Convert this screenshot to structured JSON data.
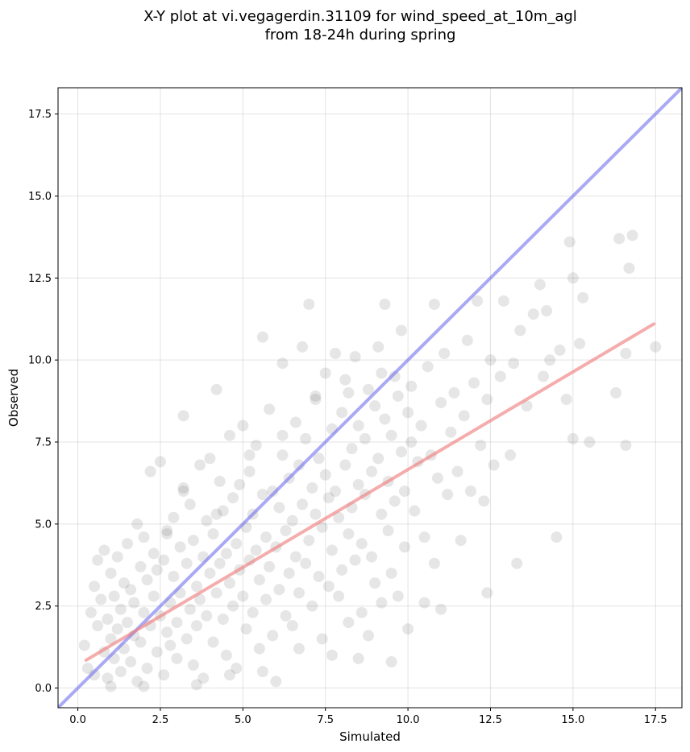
{
  "chart_data": {
    "type": "scatter",
    "title_lines": [
      "X-Y plot at vi.vegagerdin.31109 for wind_speed_at_10m_agl",
      "from 18-24h during spring"
    ],
    "xlabel": "Simulated",
    "ylabel": "Observed",
    "xlim": [
      -0.6,
      18.3
    ],
    "ylim": [
      -0.6,
      18.3
    ],
    "xticks": [
      "0.0",
      "2.5",
      "5.0",
      "7.5",
      "10.0",
      "12.5",
      "15.0",
      "17.5"
    ],
    "yticks": [
      "0.0",
      "2.5",
      "5.0",
      "7.5",
      "10.0",
      "12.5",
      "15.0",
      "17.5"
    ],
    "grid": true,
    "point_color": "#404040",
    "identity_line": {
      "from": [
        -0.6,
        -0.6
      ],
      "to": [
        18.3,
        18.3
      ],
      "color": "#6f6fee"
    },
    "fit_line": {
      "from": [
        0.25,
        0.85
      ],
      "to": [
        17.45,
        11.1
      ],
      "color": "#ef7f7f"
    },
    "points": [
      [
        0.2,
        1.3
      ],
      [
        0.3,
        0.6
      ],
      [
        0.4,
        2.3
      ],
      [
        0.5,
        3.1
      ],
      [
        0.5,
        0.4
      ],
      [
        0.6,
        1.9
      ],
      [
        0.6,
        3.9
      ],
      [
        0.7,
        2.7
      ],
      [
        0.8,
        1.1
      ],
      [
        0.8,
        4.2
      ],
      [
        0.9,
        0.3
      ],
      [
        0.9,
        2.1
      ],
      [
        1.0,
        3.5
      ],
      [
        1.0,
        1.5
      ],
      [
        1.1,
        2.8
      ],
      [
        1.1,
        0.9
      ],
      [
        1.2,
        4.0
      ],
      [
        1.2,
        1.8
      ],
      [
        1.3,
        0.5
      ],
      [
        1.3,
        2.4
      ],
      [
        1.4,
        3.2
      ],
      [
        1.4,
        1.2
      ],
      [
        1.5,
        2.0
      ],
      [
        1.5,
        4.4
      ],
      [
        1.6,
        0.8
      ],
      [
        1.6,
        3.0
      ],
      [
        1.7,
        1.6
      ],
      [
        1.7,
        2.6
      ],
      [
        1.8,
        5.0
      ],
      [
        1.8,
        0.2
      ],
      [
        1.9,
        3.7
      ],
      [
        1.9,
        1.4
      ],
      [
        2.0,
        2.3
      ],
      [
        2.0,
        4.6
      ],
      [
        2.1,
        0.6
      ],
      [
        2.1,
        3.3
      ],
      [
        2.2,
        1.9
      ],
      [
        2.2,
        6.6
      ],
      [
        2.3,
        2.8
      ],
      [
        2.3,
        4.1
      ],
      [
        2.4,
        1.1
      ],
      [
        2.4,
        3.6
      ],
      [
        2.5,
        2.2
      ],
      [
        2.5,
        6.9
      ],
      [
        2.6,
        0.4
      ],
      [
        2.6,
        3.9
      ],
      [
        2.7,
        1.7
      ],
      [
        2.7,
        4.8
      ],
      [
        2.8,
        2.6
      ],
      [
        2.8,
        1.3
      ],
      [
        2.9,
        3.4
      ],
      [
        2.9,
        5.2
      ],
      [
        3.0,
        2.0
      ],
      [
        3.0,
        0.9
      ],
      [
        3.1,
        4.3
      ],
      [
        3.1,
        2.9
      ],
      [
        3.2,
        6.1
      ],
      [
        3.2,
        8.3
      ],
      [
        3.3,
        1.5
      ],
      [
        3.3,
        3.8
      ],
      [
        3.4,
        2.4
      ],
      [
        3.4,
        5.6
      ],
      [
        3.5,
        0.7
      ],
      [
        3.5,
        4.5
      ],
      [
        3.6,
        3.1
      ],
      [
        3.6,
        1.9
      ],
      [
        3.7,
        6.8
      ],
      [
        3.7,
        2.7
      ],
      [
        3.8,
        4.0
      ],
      [
        3.8,
        0.3
      ],
      [
        3.9,
        5.1
      ],
      [
        3.9,
        2.2
      ],
      [
        4.0,
        3.5
      ],
      [
        4.0,
        7.0
      ],
      [
        4.1,
        1.4
      ],
      [
        4.1,
        4.7
      ],
      [
        4.2,
        2.9
      ],
      [
        4.2,
        9.1
      ],
      [
        4.3,
        3.8
      ],
      [
        4.3,
        6.3
      ],
      [
        4.4,
        2.1
      ],
      [
        4.4,
        5.4
      ],
      [
        4.5,
        1.0
      ],
      [
        4.5,
        4.1
      ],
      [
        4.6,
        7.7
      ],
      [
        4.6,
        3.2
      ],
      [
        4.7,
        5.8
      ],
      [
        4.7,
        2.5
      ],
      [
        4.8,
        4.4
      ],
      [
        4.8,
        0.6
      ],
      [
        4.9,
        6.2
      ],
      [
        4.9,
        3.6
      ],
      [
        5.0,
        2.8
      ],
      [
        5.0,
        8.0
      ],
      [
        5.1,
        4.9
      ],
      [
        5.1,
        1.8
      ],
      [
        5.2,
        3.9
      ],
      [
        5.2,
        6.6
      ],
      [
        5.3,
        2.3
      ],
      [
        5.3,
        5.3
      ],
      [
        5.4,
        7.4
      ],
      [
        5.4,
        4.2
      ],
      [
        5.5,
        1.2
      ],
      [
        5.5,
        3.3
      ],
      [
        5.6,
        5.9
      ],
      [
        5.6,
        10.7
      ],
      [
        5.7,
        4.6
      ],
      [
        5.7,
        2.7
      ],
      [
        5.8,
        8.5
      ],
      [
        5.8,
        3.7
      ],
      [
        5.9,
        6.0
      ],
      [
        5.9,
        1.6
      ],
      [
        6.0,
        4.3
      ],
      [
        6.0,
        0.2
      ],
      [
        6.1,
        5.5
      ],
      [
        6.1,
        3.0
      ],
      [
        6.2,
        7.1
      ],
      [
        6.2,
        9.9
      ],
      [
        6.3,
        4.8
      ],
      [
        6.3,
        2.2
      ],
      [
        6.4,
        6.4
      ],
      [
        6.4,
        3.5
      ],
      [
        6.5,
        5.1
      ],
      [
        6.5,
        1.9
      ],
      [
        6.6,
        8.1
      ],
      [
        6.6,
        4.0
      ],
      [
        6.7,
        6.8
      ],
      [
        6.7,
        2.9
      ],
      [
        6.8,
        10.4
      ],
      [
        6.8,
        5.6
      ],
      [
        6.9,
        3.8
      ],
      [
        6.9,
        7.6
      ],
      [
        7.0,
        4.5
      ],
      [
        7.0,
        11.7
      ],
      [
        7.1,
        6.1
      ],
      [
        7.1,
        2.5
      ],
      [
        7.2,
        5.3
      ],
      [
        7.2,
        8.8
      ],
      [
        7.3,
        3.4
      ],
      [
        7.3,
        7.0
      ],
      [
        7.4,
        4.9
      ],
      [
        7.4,
        1.5
      ],
      [
        7.5,
        6.5
      ],
      [
        7.5,
        9.6
      ],
      [
        7.6,
        5.8
      ],
      [
        7.6,
        3.1
      ],
      [
        7.7,
        7.9
      ],
      [
        7.7,
        4.2
      ],
      [
        7.8,
        10.2
      ],
      [
        7.8,
        6.0
      ],
      [
        7.9,
        2.8
      ],
      [
        7.9,
        5.2
      ],
      [
        8.0,
        8.4
      ],
      [
        8.0,
        3.6
      ],
      [
        8.1,
        6.8
      ],
      [
        8.1,
        9.4
      ],
      [
        8.2,
        4.7
      ],
      [
        8.2,
        2.0
      ],
      [
        8.3,
        7.3
      ],
      [
        8.3,
        5.5
      ],
      [
        8.4,
        3.9
      ],
      [
        8.4,
        10.1
      ],
      [
        8.5,
        6.2
      ],
      [
        8.5,
        8.0
      ],
      [
        8.6,
        4.4
      ],
      [
        8.6,
        2.3
      ],
      [
        8.7,
        7.6
      ],
      [
        8.7,
        5.9
      ],
      [
        8.8,
        9.1
      ],
      [
        8.8,
        1.6
      ],
      [
        8.9,
        6.6
      ],
      [
        8.9,
        4.0
      ],
      [
        9.0,
        8.6
      ],
      [
        9.0,
        3.2
      ],
      [
        9.1,
        7.0
      ],
      [
        9.1,
        10.4
      ],
      [
        9.2,
        5.3
      ],
      [
        9.2,
        2.6
      ],
      [
        9.3,
        8.2
      ],
      [
        9.3,
        11.7
      ],
      [
        9.4,
        6.3
      ],
      [
        9.4,
        4.8
      ],
      [
        9.5,
        7.7
      ],
      [
        9.5,
        3.5
      ],
      [
        9.6,
        9.5
      ],
      [
        9.6,
        5.7
      ],
      [
        9.7,
        8.9
      ],
      [
        9.7,
        2.8
      ],
      [
        9.8,
        7.2
      ],
      [
        9.8,
        10.9
      ],
      [
        9.9,
        6.0
      ],
      [
        9.9,
        4.3
      ],
      [
        10.0,
        8.4
      ],
      [
        10.0,
        1.8
      ],
      [
        10.1,
        7.5
      ],
      [
        10.1,
        9.2
      ],
      [
        10.2,
        5.4
      ],
      [
        10.3,
        6.9
      ],
      [
        10.4,
        8.0
      ],
      [
        10.5,
        4.6
      ],
      [
        10.6,
        9.8
      ],
      [
        10.7,
        7.1
      ],
      [
        10.8,
        11.7
      ],
      [
        10.8,
        3.8
      ],
      [
        10.9,
        6.4
      ],
      [
        11.0,
        8.7
      ],
      [
        11.1,
        10.2
      ],
      [
        11.2,
        5.9
      ],
      [
        11.3,
        7.8
      ],
      [
        11.4,
        9.0
      ],
      [
        11.5,
        6.6
      ],
      [
        11.6,
        4.5
      ],
      [
        11.7,
        8.3
      ],
      [
        11.8,
        10.6
      ],
      [
        11.9,
        6.0
      ],
      [
        12.0,
        9.3
      ],
      [
        12.1,
        11.8
      ],
      [
        12.2,
        7.4
      ],
      [
        12.3,
        5.7
      ],
      [
        12.4,
        8.8
      ],
      [
        12.5,
        10.0
      ],
      [
        12.6,
        6.8
      ],
      [
        12.8,
        9.5
      ],
      [
        12.9,
        11.8
      ],
      [
        13.1,
        7.1
      ],
      [
        13.2,
        9.9
      ],
      [
        13.4,
        10.9
      ],
      [
        13.6,
        8.6
      ],
      [
        13.8,
        11.4
      ],
      [
        14.0,
        12.3
      ],
      [
        14.1,
        9.5
      ],
      [
        14.2,
        11.5
      ],
      [
        14.3,
        10.0
      ],
      [
        14.5,
        4.6
      ],
      [
        14.6,
        10.3
      ],
      [
        14.8,
        8.8
      ],
      [
        14.9,
        13.6
      ],
      [
        15.0,
        12.5
      ],
      [
        15.0,
        7.6
      ],
      [
        15.2,
        10.5
      ],
      [
        15.3,
        11.9
      ],
      [
        15.5,
        7.5
      ],
      [
        16.3,
        9.0
      ],
      [
        16.4,
        13.7
      ],
      [
        16.6,
        7.4
      ],
      [
        16.6,
        10.2
      ],
      [
        16.7,
        12.8
      ],
      [
        16.8,
        13.8
      ],
      [
        17.5,
        10.4
      ],
      [
        13.3,
        3.8
      ],
      [
        12.4,
        2.9
      ],
      [
        11.0,
        2.4
      ],
      [
        10.5,
        2.6
      ],
      [
        9.5,
        0.8
      ],
      [
        8.5,
        0.9
      ],
      [
        7.7,
        1.0
      ],
      [
        6.7,
        1.2
      ],
      [
        5.6,
        0.5
      ],
      [
        4.6,
        0.4
      ],
      [
        3.6,
        0.1
      ],
      [
        2.0,
        0.05
      ],
      [
        1.0,
        0.05
      ],
      [
        2.7,
        4.7
      ],
      [
        3.2,
        6.0
      ],
      [
        4.2,
        5.3
      ],
      [
        5.2,
        7.1
      ],
      [
        6.2,
        7.7
      ],
      [
        7.2,
        8.9
      ],
      [
        8.2,
        9.0
      ],
      [
        9.2,
        9.6
      ]
    ]
  }
}
